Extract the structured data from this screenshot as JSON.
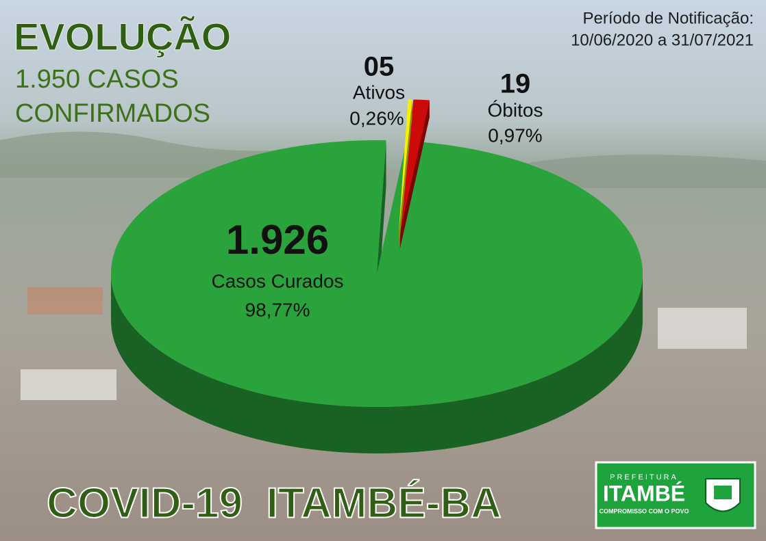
{
  "chart_data": {
    "type": "pie3d",
    "title": "EVOLUÇÃO",
    "subtitle_lines": [
      "1.950 CASOS",
      "CONFIRMADOS"
    ],
    "period_label": "Período de Notificação:",
    "period": "10/06/2020 a 31/07/2021",
    "categories": [
      "Casos Curados",
      "Ativos",
      "Óbitos"
    ],
    "values": [
      1926,
      5,
      19
    ],
    "value_labels": [
      "1.926",
      "05",
      "19"
    ],
    "percent_values": [
      98.77,
      0.26,
      0.97
    ],
    "percent_labels": [
      "98,77%",
      "0,26%",
      "0,97%"
    ],
    "colors": [
      "#2aa33c",
      "#f2f200",
      "#cc0a0a"
    ],
    "footer": "COVID-19  ITAMBÉ-BA"
  },
  "logo": {
    "top": "PREFEITURA",
    "name": "ITAMBÉ",
    "motto": "COMPROMISSO COM O POVO"
  }
}
